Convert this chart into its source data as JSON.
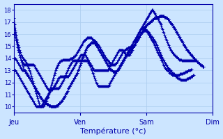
{
  "xlabel": "Température (°c)",
  "ylim": [
    9.5,
    18.5
  ],
  "yticks": [
    10,
    11,
    12,
    13,
    14,
    15,
    16,
    17,
    18
  ],
  "day_labels": [
    "Jeu",
    "Ven",
    "Sam",
    "Dim"
  ],
  "day_positions": [
    0,
    96,
    192,
    288
  ],
  "total_points": 289,
  "background_color": "#cce5ff",
  "grid_color": "#aaccee",
  "line_color": "#0000aa",
  "marker": "+",
  "marker_size": 3,
  "line_width": 0.8,
  "series": [
    [
      17.3,
      16.8,
      16.3,
      15.9,
      15.5,
      15.2,
      14.9,
      14.6,
      14.3,
      14.1,
      13.9,
      13.7,
      13.5,
      13.3,
      13.1,
      13.0,
      12.9,
      12.8,
      12.7,
      12.6,
      12.5,
      12.5,
      12.4,
      12.3,
      12.2,
      12.1,
      12.0,
      11.9,
      11.8,
      11.7,
      11.6,
      11.5,
      11.4,
      11.3,
      11.2,
      11.1,
      11.0,
      10.9,
      10.8,
      10.7,
      10.6,
      10.5,
      10.5,
      10.4,
      10.4,
      10.3,
      10.3,
      10.2,
      10.2,
      10.2,
      10.1,
      10.1,
      10.1,
      10.0,
      10.0,
      10.0,
      10.0,
      10.0,
      10.0,
      10.0,
      10.0,
      10.1,
      10.1,
      10.1,
      10.2,
      10.2,
      10.3,
      10.3,
      10.4,
      10.4,
      10.5,
      10.6,
      10.7,
      10.8,
      10.9,
      11.0,
      11.1,
      11.2,
      11.3,
      11.5,
      11.6,
      11.7,
      11.8,
      11.9,
      12.0,
      12.1,
      12.2,
      12.3,
      12.4,
      12.5,
      12.6,
      12.7,
      12.8,
      13.0,
      13.1,
      13.3,
      13.4,
      13.6,
      13.8,
      14.0,
      14.1,
      14.3,
      14.4,
      14.5,
      14.7,
      14.8,
      14.9,
      15.0,
      15.1,
      15.1,
      15.2,
      15.2,
      15.3,
      15.3,
      15.3,
      15.3,
      15.3,
      15.2,
      15.2,
      15.1,
      15.0,
      14.9,
      14.8,
      14.7,
      14.6,
      14.5,
      14.4,
      14.3,
      14.2,
      14.1,
      14.0,
      13.9,
      13.8,
      13.7,
      13.6,
      13.5,
      13.4,
      13.3,
      13.3,
      13.2,
      13.1,
      13.1,
      13.0,
      13.0,
      12.9,
      12.9,
      12.9,
      12.9,
      12.9,
      12.9,
      13.0,
      13.0,
      13.1,
      13.2,
      13.3,
      13.4,
      13.5,
      13.6,
      13.7,
      13.8,
      13.9,
      14.0,
      14.1,
      14.2,
      14.3,
      14.4,
      14.5,
      14.5,
      14.6,
      14.7,
      14.7,
      14.8,
      14.9,
      14.9,
      15.0,
      15.1,
      15.2,
      15.3,
      15.4,
      15.5,
      15.6,
      15.7,
      15.8,
      15.9,
      16.0,
      16.1,
      16.2,
      16.3,
      16.4,
      16.5,
      16.6,
      16.7,
      16.7,
      16.8,
      16.8,
      16.9,
      16.9,
      17.0,
      17.0,
      17.1,
      17.1,
      17.2,
      17.2,
      17.3,
      17.3,
      17.3,
      17.3,
      17.4,
      17.4,
      17.4,
      17.4,
      17.5,
      17.5,
      17.5,
      17.5,
      17.5,
      17.5,
      17.5,
      17.5,
      17.4,
      17.4,
      17.4,
      17.3,
      17.3,
      17.2,
      17.2,
      17.1,
      17.0,
      16.9,
      16.8,
      16.8,
      16.7,
      16.6,
      16.5,
      16.4,
      16.3,
      16.2,
      16.1,
      16.0,
      15.9,
      15.8,
      15.7,
      15.6,
      15.5,
      15.4,
      15.3,
      15.2,
      15.1,
      15.0,
      14.9,
      14.8,
      14.7,
      14.7,
      14.6,
      14.5,
      14.4,
      14.4,
      14.3,
      14.2,
      14.2,
      14.1,
      14.0,
      14.0,
      13.9,
      13.8,
      13.8,
      13.7,
      13.7,
      13.6,
      13.6,
      13.5,
      13.5,
      13.4,
      13.4,
      13.3,
      13.3
    ],
    [
      16.8,
      16.5,
      16.2,
      15.9,
      15.6,
      15.3,
      15.1,
      14.9,
      14.7,
      14.5,
      14.3,
      14.2,
      14.1,
      14.0,
      13.9,
      13.9,
      13.8,
      13.7,
      13.6,
      13.5,
      13.3,
      13.2,
      13.0,
      12.9,
      12.7,
      12.5,
      12.3,
      12.1,
      11.9,
      11.7,
      11.5,
      11.3,
      11.1,
      10.9,
      10.7,
      10.5,
      10.3,
      10.1,
      10.0,
      10.0,
      10.0,
      10.0,
      10.0,
      10.1,
      10.2,
      10.3,
      10.4,
      10.5,
      10.7,
      10.8,
      11.0,
      11.2,
      11.4,
      11.6,
      11.8,
      12.0,
      12.2,
      12.4,
      12.6,
      12.8,
      13.0,
      13.2,
      13.3,
      13.4,
      13.5,
      13.6,
      13.7,
      13.7,
      13.8,
      13.8,
      13.8,
      13.9,
      13.9,
      13.9,
      13.9,
      13.9,
      13.9,
      13.9,
      13.9,
      13.9,
      13.9,
      13.9,
      14.0,
      14.0,
      14.0,
      14.0,
      14.1,
      14.1,
      14.2,
      14.2,
      14.3,
      14.4,
      14.5,
      14.6,
      14.7,
      14.8,
      14.9,
      15.0,
      15.1,
      15.2,
      15.3,
      15.4,
      15.5,
      15.5,
      15.6,
      15.6,
      15.7,
      15.7,
      15.7,
      15.7,
      15.7,
      15.7,
      15.7,
      15.6,
      15.6,
      15.5,
      15.5,
      15.4,
      15.4,
      15.3,
      15.2,
      15.2,
      15.1,
      15.0,
      14.9,
      14.8,
      14.7,
      14.6,
      14.5,
      14.4,
      14.3,
      14.2,
      14.1,
      14.0,
      13.9,
      13.9,
      13.8,
      13.7,
      13.7,
      13.6,
      13.6,
      13.5,
      13.5,
      13.5,
      13.5,
      13.5,
      13.5,
      13.5,
      13.6,
      13.6,
      13.7,
      13.8,
      13.9,
      14.0,
      14.1,
      14.2,
      14.3,
      14.4,
      14.5,
      14.6,
      14.6,
      14.7,
      14.7,
      14.8,
      14.8,
      14.8,
      14.9,
      14.9,
      14.9,
      14.9,
      14.9,
      14.9,
      15.0,
      15.0,
      15.1,
      15.1,
      15.2,
      15.3,
      15.4,
      15.5,
      15.6,
      15.7,
      15.8,
      15.9,
      16.0,
      16.1,
      16.2,
      16.2,
      16.3,
      16.3,
      16.3,
      16.3,
      16.3,
      16.3,
      16.2,
      16.2,
      16.1,
      16.0,
      15.9,
      15.8,
      15.8,
      15.7,
      15.6,
      15.5,
      15.4,
      15.3,
      15.2,
      15.1,
      14.9,
      14.8,
      14.7,
      14.5,
      14.4,
      14.3,
      14.2,
      14.1,
      14.0,
      13.9,
      13.8,
      13.7,
      13.6,
      13.5,
      13.4,
      13.3,
      13.2,
      13.2,
      13.1,
      13.0,
      13.0,
      12.9,
      12.8,
      12.8,
      12.7,
      12.7,
      12.6,
      12.5,
      12.5,
      12.4,
      12.4,
      12.3,
      12.3,
      12.3,
      12.2,
      12.2,
      12.2,
      12.2,
      12.2,
      12.2,
      12.2,
      12.2,
      12.2,
      12.3,
      12.3,
      12.3,
      12.4,
      12.4,
      12.4,
      12.5,
      12.5,
      12.5,
      12.6,
      12.6
    ],
    [
      16.2,
      16.0,
      15.7,
      15.5,
      15.2,
      14.9,
      14.7,
      14.5,
      14.3,
      14.1,
      13.9,
      13.8,
      13.7,
      13.6,
      13.5,
      13.5,
      13.5,
      13.5,
      13.5,
      13.5,
      13.5,
      13.5,
      13.5,
      13.5,
      13.5,
      13.5,
      13.5,
      13.5,
      13.5,
      13.4,
      13.3,
      13.2,
      13.1,
      13.0,
      12.9,
      12.8,
      12.7,
      12.6,
      12.5,
      12.4,
      12.3,
      12.2,
      12.1,
      12.0,
      11.9,
      11.8,
      11.7,
      11.6,
      11.5,
      11.4,
      11.4,
      11.4,
      11.4,
      11.4,
      11.4,
      11.4,
      11.5,
      11.6,
      11.7,
      11.8,
      11.9,
      12.0,
      12.1,
      12.2,
      12.3,
      12.4,
      12.4,
      12.5,
      12.5,
      12.5,
      12.5,
      12.5,
      12.5,
      12.5,
      12.5,
      12.5,
      12.5,
      12.5,
      12.5,
      12.5,
      12.6,
      12.7,
      12.8,
      12.9,
      13.0,
      13.1,
      13.2,
      13.3,
      13.4,
      13.5,
      13.6,
      13.7,
      13.8,
      13.9,
      14.0,
      14.1,
      14.2,
      14.3,
      14.3,
      14.3,
      14.3,
      14.3,
      14.3,
      14.3,
      14.2,
      14.1,
      14.0,
      13.9,
      13.8,
      13.7,
      13.6,
      13.5,
      13.4,
      13.3,
      13.2,
      13.1,
      13.0,
      13.0,
      13.0,
      13.0,
      13.0,
      13.0,
      13.0,
      13.0,
      13.0,
      13.0,
      13.0,
      13.0,
      13.0,
      13.0,
      13.0,
      13.0,
      13.0,
      13.0,
      13.0,
      13.0,
      13.0,
      13.1,
      13.2,
      13.3,
      13.4,
      13.5,
      13.6,
      13.7,
      13.8,
      13.9,
      14.0,
      14.1,
      14.2,
      14.3,
      14.4,
      14.5,
      14.6,
      14.7,
      14.7,
      14.7,
      14.7,
      14.7,
      14.7,
      14.6,
      14.5,
      14.4,
      14.4,
      14.3,
      14.3,
      14.3,
      14.3,
      14.3,
      14.3,
      14.4,
      14.5,
      14.6,
      14.7,
      14.9,
      15.0,
      15.2,
      15.3,
      15.5,
      15.6,
      15.8,
      15.9,
      16.1,
      16.2,
      16.3,
      16.4,
      16.5,
      16.5,
      16.5,
      16.5,
      16.5,
      16.4,
      16.4,
      16.3,
      16.2,
      16.1,
      16.0,
      15.9,
      15.8,
      15.7,
      15.6,
      15.5,
      15.4,
      15.3,
      15.2,
      15.1,
      14.9,
      14.8,
      14.7,
      14.5,
      14.4,
      14.3,
      14.2,
      14.1,
      14.0,
      13.9,
      13.8,
      13.7,
      13.5,
      13.4,
      13.3,
      13.2,
      13.1,
      13.1,
      13.0,
      13.0,
      12.9,
      12.8,
      12.8,
      12.7,
      12.7,
      12.6,
      12.6,
      12.6,
      12.6,
      12.6,
      12.6,
      12.6,
      12.6,
      12.6,
      12.6,
      12.6,
      12.7,
      12.7,
      12.7,
      12.7,
      12.7,
      12.8,
      12.8,
      12.8,
      12.9,
      12.9,
      12.9,
      12.9,
      13.0,
      13.0,
      13.0,
      13.0,
      13.1,
      13.1
    ],
    [
      14.0,
      14.0,
      14.0,
      13.9,
      13.8,
      13.7,
      13.6,
      13.5,
      13.4,
      13.3,
      13.2,
      13.1,
      13.0,
      13.0,
      13.0,
      13.0,
      13.0,
      12.9,
      12.8,
      12.7,
      12.6,
      12.5,
      12.4,
      12.3,
      12.2,
      12.1,
      12.0,
      11.9,
      11.8,
      11.7,
      11.6,
      11.5,
      11.4,
      11.3,
      11.2,
      11.1,
      11.0,
      10.9,
      10.8,
      10.7,
      10.6,
      10.5,
      10.5,
      10.4,
      10.4,
      10.3,
      10.3,
      10.2,
      10.2,
      10.2,
      10.1,
      10.1,
      10.1,
      10.0,
      10.0,
      10.0,
      10.0,
      10.0,
      10.0,
      10.0,
      10.0,
      10.1,
      10.1,
      10.1,
      10.2,
      10.2,
      10.3,
      10.3,
      10.4,
      10.4,
      10.5,
      10.6,
      10.7,
      10.8,
      10.9,
      11.0,
      11.1,
      11.2,
      11.3,
      11.5,
      11.6,
      11.7,
      11.8,
      11.9,
      12.0,
      12.1,
      12.2,
      12.3,
      12.4,
      12.5,
      12.6,
      12.7,
      12.8,
      13.0,
      13.1,
      13.3,
      13.4,
      13.6,
      13.8,
      14.0,
      14.1,
      14.3,
      14.4,
      14.5,
      14.7,
      14.8,
      14.9,
      15.0,
      15.1,
      15.1,
      15.2,
      15.2,
      15.3,
      15.3,
      15.3,
      15.3,
      15.3,
      15.2,
      15.2,
      15.1,
      15.0,
      14.9,
      14.8,
      14.7,
      14.6,
      14.5,
      14.4,
      14.3,
      14.2,
      14.1,
      14.0,
      13.9,
      13.8,
      13.7,
      13.6,
      13.5,
      13.4,
      13.3,
      13.3,
      13.2,
      13.1,
      13.1,
      13.0,
      13.0,
      12.9,
      12.9,
      12.9,
      12.9,
      12.9,
      12.9,
      13.0,
      13.0,
      13.1,
      13.2,
      13.3,
      13.4,
      13.5,
      13.6,
      13.7,
      13.8,
      13.9,
      14.0,
      14.1,
      14.2,
      14.3,
      14.4,
      14.5,
      14.5,
      14.6,
      14.7,
      14.7,
      14.8,
      14.9,
      14.9,
      15.0,
      15.1,
      15.2,
      15.3,
      15.4,
      15.5,
      15.6,
      15.7,
      15.8,
      15.9,
      16.0,
      16.1,
      16.2,
      16.3,
      16.4,
      16.5,
      16.6,
      16.7,
      16.7,
      16.8,
      16.8,
      16.9,
      16.9,
      17.0,
      17.0,
      17.1,
      17.1,
      17.2,
      17.2,
      17.3,
      17.3,
      17.3,
      17.3,
      17.4,
      17.4,
      17.4,
      17.4,
      17.5,
      17.5,
      17.5,
      17.5,
      17.5,
      17.5,
      17.5,
      17.5,
      17.4,
      17.4,
      17.4,
      17.3,
      17.3,
      17.2,
      17.2,
      17.1,
      17.0,
      16.9,
      16.8,
      16.8,
      16.7,
      16.6,
      16.5,
      16.4,
      16.3,
      16.2,
      16.1,
      16.0,
      15.9,
      15.8,
      15.7,
      15.6,
      15.5,
      15.4,
      15.3,
      15.2,
      15.1,
      15.0,
      14.9,
      14.8,
      14.7,
      14.7,
      14.6,
      14.5,
      14.4,
      14.4,
      14.3,
      14.2,
      14.2,
      14.1,
      14.0,
      14.0,
      13.9,
      13.8,
      13.8,
      13.7,
      13.7,
      13.6,
      13.6,
      13.5,
      13.5,
      13.4,
      13.4,
      13.3,
      13.3
    ],
    [
      13.0,
      13.0,
      13.0,
      12.9,
      12.8,
      12.7,
      12.6,
      12.5,
      12.4,
      12.3,
      12.2,
      12.1,
      12.0,
      11.9,
      11.8,
      11.7,
      11.6,
      11.5,
      11.4,
      11.3,
      11.2,
      11.1,
      11.0,
      10.9,
      10.8,
      10.7,
      10.6,
      10.5,
      10.4,
      10.3,
      10.2,
      10.1,
      10.0,
      10.0,
      10.0,
      10.0,
      10.0,
      10.0,
      10.0,
      10.0,
      10.1,
      10.2,
      10.3,
      10.4,
      10.5,
      10.6,
      10.7,
      10.8,
      10.9,
      11.0,
      11.1,
      11.2,
      11.3,
      11.4,
      11.5,
      11.5,
      11.5,
      11.5,
      11.5,
      11.5,
      11.5,
      11.5,
      11.5,
      11.5,
      11.5,
      11.5,
      11.6,
      11.7,
      11.8,
      11.9,
      12.0,
      12.1,
      12.2,
      12.3,
      12.5,
      12.6,
      12.8,
      12.9,
      13.0,
      13.2,
      13.3,
      13.4,
      13.5,
      13.6,
      13.7,
      13.8,
      13.8,
      13.8,
      13.8,
      13.8,
      13.8,
      13.8,
      13.8,
      13.8,
      13.8,
      13.8,
      13.8,
      13.8,
      13.8,
      13.8,
      13.8,
      13.8,
      13.8,
      13.8,
      13.8,
      13.8,
      13.8,
      13.7,
      13.6,
      13.5,
      13.4,
      13.3,
      13.1,
      13.0,
      12.8,
      12.7,
      12.5,
      12.3,
      12.2,
      12.0,
      11.9,
      11.8,
      11.7,
      11.7,
      11.7,
      11.7,
      11.7,
      11.7,
      11.7,
      11.7,
      11.7,
      11.7,
      11.7,
      11.7,
      11.7,
      11.7,
      11.7,
      11.7,
      11.8,
      11.9,
      12.0,
      12.1,
      12.2,
      12.3,
      12.4,
      12.5,
      12.6,
      12.7,
      12.8,
      12.9,
      13.0,
      13.1,
      13.2,
      13.3,
      13.4,
      13.5,
      13.6,
      13.7,
      13.8,
      13.9,
      14.0,
      14.1,
      14.2,
      14.3,
      14.4,
      14.5,
      14.6,
      14.7,
      14.8,
      14.9,
      15.0,
      15.1,
      15.2,
      15.3,
      15.4,
      15.5,
      15.6,
      15.7,
      15.8,
      15.9,
      16.0,
      16.1,
      16.2,
      16.3,
      16.4,
      16.5,
      16.6,
      16.7,
      16.8,
      16.9,
      17.0,
      17.1,
      17.2,
      17.3,
      17.4,
      17.5,
      17.6,
      17.7,
      17.8,
      17.9,
      18.0,
      18.0,
      17.9,
      17.8,
      17.7,
      17.6,
      17.5,
      17.4,
      17.3,
      17.2,
      17.1,
      17.0,
      16.9,
      16.8,
      16.7,
      16.5,
      16.4,
      16.2,
      16.1,
      15.9,
      15.8,
      15.6,
      15.5,
      15.3,
      15.2,
      15.1,
      14.9,
      14.8,
      14.7,
      14.6,
      14.5,
      14.4,
      14.4,
      14.3,
      14.2,
      14.2,
      14.1,
      14.1,
      14.0,
      14.0,
      13.9,
      13.9,
      13.9,
      13.9,
      13.8,
      13.8,
      13.8,
      13.8,
      13.8,
      13.8,
      13.8,
      13.8,
      13.8,
      13.8,
      13.8,
      13.8,
      13.8,
      13.8,
      13.8,
      13.8,
      13.8,
      13.8,
      13.8,
      13.8
    ]
  ]
}
